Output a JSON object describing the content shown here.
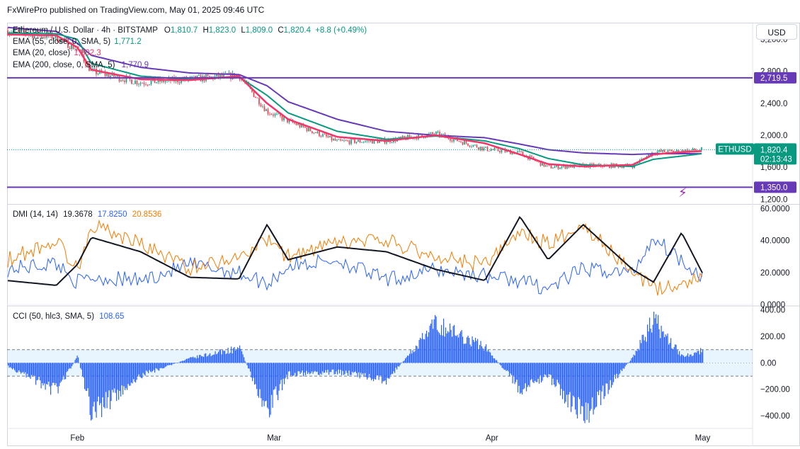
{
  "header": {
    "publisher": "FxWirePro published on TradingView.com, May 01, 2025 09:46 UTC"
  },
  "main_legend": {
    "symbol": "Ethereum / U.S. Dollar · 4h · BITSTAMP",
    "open_label": "O",
    "open": "1,810.7",
    "high_label": "H",
    "high": "1,823.0",
    "low_label": "L",
    "low": "1,809.0",
    "close_label": "C",
    "close": "1,820.4",
    "change": "+8.8 (+0.49%)",
    "ema55_label": "EMA (55, close, 0, SMA, 5)",
    "ema55_value": "1,771.2",
    "ema20_label": "EMA (20, close)",
    "ema20_value": "1,802.3",
    "ema200_label": "EMA (200, close, 0, SMA, 5)",
    "ema200_value": "1,770.9"
  },
  "currency_button": "USD",
  "price_axis": {
    "ticks": [
      "3,200.0",
      "2,800.0",
      "2,400.0",
      "2,000.0",
      "1,600.0",
      "1,200.0"
    ],
    "resistance_label": "2,719.5",
    "support_label": "1,350.0",
    "symbol_tag": "ETHUSD",
    "last_price": "1,820.4",
    "countdown": "02:13:43"
  },
  "dmi_legend": {
    "label": "DMI (14, 14)",
    "adx": "19.3678",
    "plus_di": "17.8250",
    "minus_di": "20.8536"
  },
  "dmi_axis": {
    "ticks": [
      "60.0000",
      "40.0000",
      "20.0000",
      "0.0000"
    ]
  },
  "cci_legend": {
    "label": "CCI (50, hlc3, SMA, 5)",
    "value": "108.65"
  },
  "cci_axis": {
    "ticks": [
      "400.00",
      "200.00",
      "0.00",
      "−200.00",
      "−400.00"
    ]
  },
  "time_axis": {
    "labels": [
      "Feb",
      "Mar",
      "Apr",
      "May"
    ]
  },
  "colors": {
    "ema20": "#f23669",
    "ema55": "#089981",
    "ema200": "#673ab7",
    "hline": "#673ab7",
    "adx": "#131722",
    "plus_di": "#2962ff",
    "minus_di": "#f57c00",
    "cci": "#2962ff",
    "candle_up": "#089981",
    "candle_down": "#f23645"
  },
  "chart_data": [
    {
      "type": "candlestick",
      "title": "Ethereum / U.S. Dollar · 4h · BITSTAMP",
      "x": [
        "2025-01-22",
        "2025-01-29",
        "2025-02-01",
        "2025-02-03",
        "2025-02-10",
        "2025-02-17",
        "2025-02-24",
        "2025-02-28",
        "2025-03-03",
        "2025-03-10",
        "2025-03-17",
        "2025-03-24",
        "2025-03-31",
        "2025-04-05",
        "2025-04-09",
        "2025-04-14",
        "2025-04-21",
        "2025-04-24",
        "2025-04-28",
        "2025-05-01"
      ],
      "close": [
        3310,
        3230,
        3080,
        2800,
        2660,
        2700,
        2750,
        2300,
        2180,
        1920,
        1930,
        2020,
        1830,
        1780,
        1600,
        1620,
        1620,
        1790,
        1800,
        1820.4
      ],
      "series": [
        {
          "name": "EMA (20, close)",
          "values": [
            3260,
            3250,
            3100,
            2820,
            2700,
            2690,
            2740,
            2400,
            2200,
            1980,
            1930,
            2000,
            1900,
            1760,
            1640,
            1610,
            1630,
            1760,
            1790,
            1802.3
          ]
        },
        {
          "name": "EMA (55, close, 0, SMA, 5)",
          "values": [
            3280,
            3270,
            3200,
            2900,
            2740,
            2700,
            2730,
            2500,
            2280,
            2050,
            1950,
            1990,
            1930,
            1830,
            1710,
            1630,
            1610,
            1700,
            1740,
            1771.2
          ]
        },
        {
          "name": "EMA (200, close, 0, SMA, 5)",
          "values": [
            3350,
            3300,
            3150,
            3000,
            2850,
            2780,
            2760,
            2620,
            2420,
            2200,
            2050,
            2000,
            1970,
            1890,
            1820,
            1780,
            1760,
            1770,
            1770,
            1770.9
          ]
        }
      ],
      "hlines": [
        2719.5,
        1350.0
      ],
      "ylim": [
        1150,
        3400
      ]
    },
    {
      "type": "line",
      "title": "DMI (14, 14)",
      "x": [
        "2025-01-22",
        "2025-01-29",
        "2025-02-01",
        "2025-02-03",
        "2025-02-10",
        "2025-02-17",
        "2025-02-24",
        "2025-02-28",
        "2025-03-03",
        "2025-03-10",
        "2025-03-17",
        "2025-03-24",
        "2025-03-31",
        "2025-04-05",
        "2025-04-09",
        "2025-04-14",
        "2025-04-21",
        "2025-04-24",
        "2025-04-28",
        "2025-05-01"
      ],
      "series": [
        {
          "name": "ADX",
          "values": [
            15,
            12,
            25,
            42,
            33,
            17,
            16,
            50,
            28,
            36,
            33,
            22,
            15,
            55,
            28,
            50,
            22,
            14,
            45,
            19.37
          ]
        },
        {
          "name": "+DI",
          "values": [
            22,
            26,
            14,
            17,
            15,
            25,
            20,
            13,
            24,
            28,
            15,
            22,
            18,
            15,
            10,
            22,
            20,
            42,
            28,
            17.83
          ]
        },
        {
          "name": "-DI",
          "values": [
            28,
            40,
            22,
            50,
            38,
            23,
            30,
            40,
            30,
            38,
            40,
            30,
            25,
            45,
            38,
            50,
            20,
            10,
            12,
            20.85
          ]
        }
      ],
      "ylim": [
        0,
        62
      ]
    },
    {
      "type": "bar",
      "title": "CCI (50, hlc3, SMA, 5)",
      "x": [
        "2025-01-22",
        "2025-01-29",
        "2025-02-01",
        "2025-02-03",
        "2025-02-10",
        "2025-02-17",
        "2025-02-24",
        "2025-02-28",
        "2025-03-03",
        "2025-03-10",
        "2025-03-17",
        "2025-03-24",
        "2025-03-31",
        "2025-04-05",
        "2025-04-09",
        "2025-04-14",
        "2025-04-21",
        "2025-04-24",
        "2025-04-28",
        "2025-05-01"
      ],
      "values": [
        -30,
        -250,
        60,
        -450,
        -110,
        40,
        130,
        -420,
        -100,
        -80,
        -150,
        350,
        140,
        -230,
        -120,
        -480,
        50,
        380,
        60,
        108.65
      ],
      "bands": [
        100,
        -100
      ],
      "ylim": [
        -480,
        420
      ]
    }
  ]
}
